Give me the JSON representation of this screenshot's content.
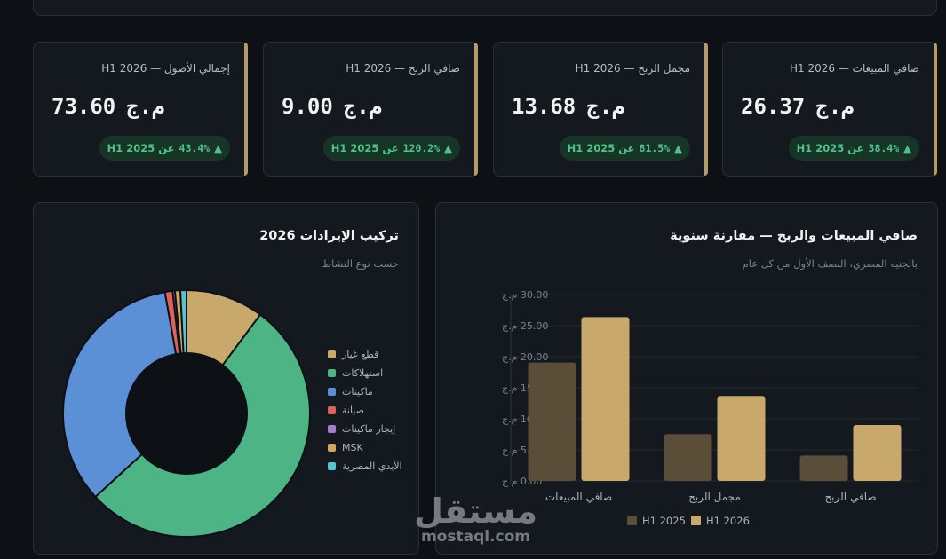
{
  "kpis": [
    {
      "label": "صافي المبيعات — H1 2026",
      "value": "26.37",
      "unit": "م.ج",
      "pct": "38.4%",
      "vs": "عن H1 2025"
    },
    {
      "label": "مجمل الربح — H1 2026",
      "value": "13.68",
      "unit": "م.ج",
      "pct": "81.5%",
      "vs": "عن H1 2025"
    },
    {
      "label": "صافي الربح — H1 2026",
      "value": "9.00",
      "unit": "م.ج",
      "pct": "120.2%",
      "vs": "عن H1 2025"
    },
    {
      "label": "إجمالي الأصول — H1 2026",
      "value": "73.60",
      "unit": "م.ج",
      "pct": "43.4%",
      "vs": "عن H1 2025"
    }
  ],
  "bar_panel": {
    "title": "صافي المبيعات والربح — مقارنة سنوية",
    "subtitle": "بالجنيه المصري، النصف الأول من كل عام"
  },
  "donut_panel": {
    "title": "تركيب الإيرادات 2026",
    "subtitle": "حسب نوع النشاط"
  },
  "watermark": {
    "arabic": "مستقل",
    "latin": "mostaql.com"
  },
  "colors": {
    "accent": "#b59b66",
    "positive": "#4cc38a"
  },
  "chart_data": [
    {
      "type": "bar",
      "categories": [
        "صافي المبيعات",
        "مجمل الربح",
        "صافي الربح"
      ],
      "series": [
        {
          "name": "H1 2025",
          "values": [
            19.05,
            7.54,
            4.09
          ],
          "color": "#5a4e38"
        },
        {
          "name": "H1 2026",
          "values": [
            26.37,
            13.68,
            9.0
          ],
          "color": "#c9a96b"
        }
      ],
      "ylim": [
        0,
        30
      ],
      "yticks": [
        "0.00 م.ج",
        "5.00 م.ج",
        "10.00 م.ج",
        "15.00 م.ج",
        "20.00 م.ج",
        "25.00 م.ج",
        "30.00 م.ج"
      ],
      "ytick_values": [
        0,
        5,
        10,
        15,
        20,
        25,
        30
      ],
      "grid": true,
      "legend": "bottom"
    },
    {
      "type": "pie",
      "donut": true,
      "labels": [
        "قطع غيار",
        "استهلاكات",
        "ماكينات",
        "صيانة",
        "إيجار ماكينات",
        "MSK",
        "الأيدي المصرية"
      ],
      "values": [
        10.2,
        53.0,
        34.0,
        1.0,
        0.3,
        0.7,
        0.8
      ],
      "colors": [
        "#c9a96b",
        "#4db585",
        "#5b8fd6",
        "#e0605a",
        "#a77ad1",
        "#d4a85a",
        "#56c3cf"
      ],
      "legend": "right"
    }
  ]
}
